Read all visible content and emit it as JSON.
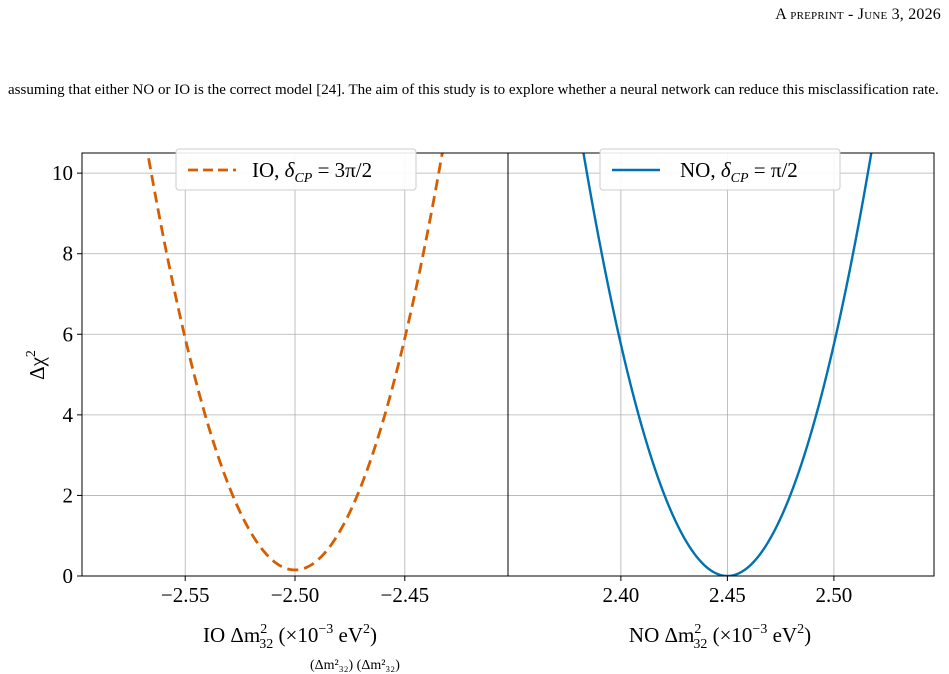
{
  "header": {
    "running_head_prefix": "A preprint",
    "running_head_sep": " - ",
    "running_head_date": "June 3, 2026"
  },
  "body": {
    "paragraph": "assuming that either NO or IO is the correct model [24]. The aim of this study is to explore whether a neural network can reduce this misclassification rate."
  },
  "chart_data": [
    {
      "type": "line",
      "panel": "left",
      "xlabel": "IO Δm²₃₂ (×10⁻³ eV²)",
      "ylabel": "Δχ²",
      "xlim": [
        -2.597,
        -2.403
      ],
      "ylim": [
        0,
        10.5
      ],
      "xticks": [
        -2.55,
        -2.5,
        -2.45
      ],
      "xtick_labels": [
        "−2.55",
        "−2.50",
        "−2.45"
      ],
      "yticks": [
        0,
        2,
        4,
        6,
        8,
        10
      ],
      "ytick_labels": [
        "0",
        "2",
        "4",
        "6",
        "8",
        "10"
      ],
      "grid": true,
      "legend_position": "top-center",
      "series": [
        {
          "name": "IO, δCP = 3π/2",
          "style": "dashed",
          "color": "#d55e00",
          "model": {
            "form": "quadratic",
            "min_x": -2.5,
            "min_y": 0.15,
            "curvature": 2300
          },
          "x_range": [
            -2.568,
            -2.432
          ]
        }
      ]
    },
    {
      "type": "line",
      "panel": "right",
      "xlabel": "NO Δm²₃₂ (×10⁻³ eV²)",
      "ylabel": "",
      "xlim": [
        2.347,
        2.547
      ],
      "ylim": [
        0,
        10.5
      ],
      "xticks": [
        2.4,
        2.45,
        2.5
      ],
      "xtick_labels": [
        "2.40",
        "2.45",
        "2.50"
      ],
      "yticks": [],
      "ytick_labels": [],
      "grid": true,
      "legend_position": "top-center",
      "series": [
        {
          "name": "NO, δCP = π/2",
          "style": "solid",
          "color": "#0072b2",
          "model": {
            "form": "quadratic",
            "min_x": 2.45,
            "min_y": 0.0,
            "curvature": 2300
          },
          "x_range": [
            2.381,
            2.519
          ]
        }
      ]
    }
  ],
  "legend_text": {
    "left": {
      "prefix": "IO, ",
      "delta": "δ",
      "sub": "CP",
      "rest": " = 3π/2"
    },
    "right": {
      "prefix": "NO, ",
      "delta": "δ",
      "sub": "CP",
      "rest": " = π/2"
    }
  },
  "axis_text": {
    "ylabel_main": "Δχ",
    "ylabel_sup": "2",
    "left_x_prefix": "IO Δm",
    "right_x_prefix": "NO Δm",
    "x_sub": "32",
    "x_sup": "2",
    "x_unit_open": " (×10",
    "x_unit_exp": "−3",
    "x_unit_mid": " eV",
    "x_unit_sup": "2",
    "x_unit_close": ")"
  },
  "caption": {
    "partial": "(Δm²₃₂)            (Δm²₃₂)"
  }
}
